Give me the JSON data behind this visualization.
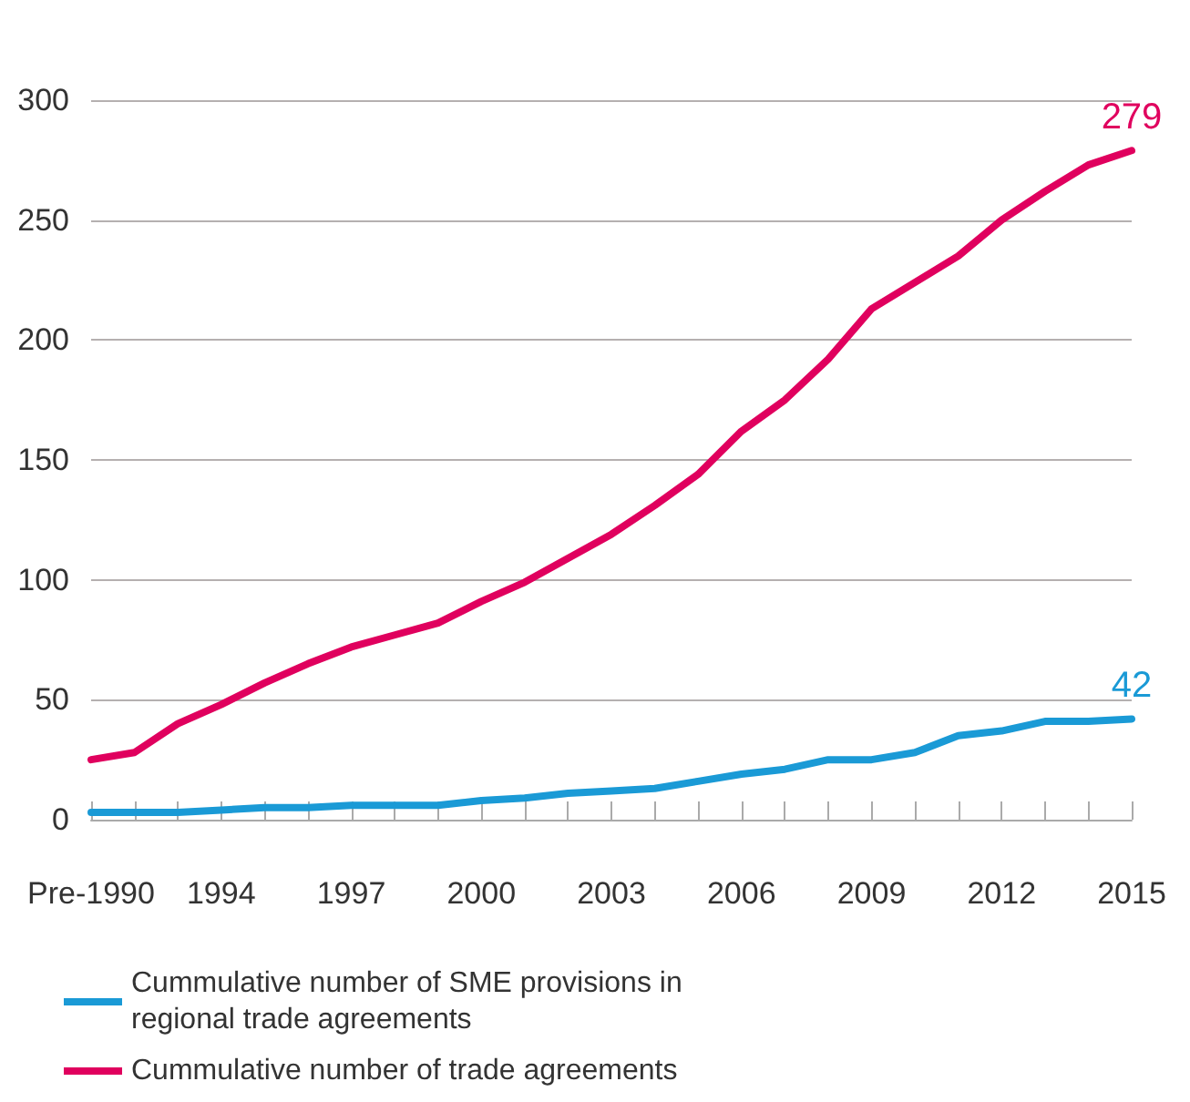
{
  "chart_data": {
    "type": "line",
    "categories": [
      "Pre-1990",
      null,
      null,
      "1994",
      null,
      null,
      "1997",
      null,
      null,
      "2000",
      null,
      null,
      "2003",
      null,
      null,
      "2006",
      null,
      null,
      "2009",
      null,
      null,
      "2012",
      null,
      null,
      "2015"
    ],
    "series": [
      {
        "name": "Cummulative number of SME provisions in regional trade agreements",
        "color": "#1a9ad6",
        "values": [
          3,
          3,
          3,
          4,
          5,
          5,
          6,
          6,
          6,
          8,
          9,
          11,
          12,
          13,
          16,
          19,
          21,
          25,
          25,
          28,
          35,
          37,
          41,
          41,
          42
        ],
        "value_labels": [
          null,
          null,
          null,
          null,
          null,
          null,
          null,
          null,
          null,
          null,
          null,
          null,
          null,
          null,
          null,
          null,
          null,
          null,
          null,
          null,
          null,
          null,
          null,
          null,
          "42"
        ]
      },
      {
        "name": "Cummulative number of trade agreements",
        "color": "#e0005e",
        "values": [
          25,
          28,
          40,
          48,
          57,
          65,
          72,
          77,
          82,
          91,
          99,
          109,
          119,
          131,
          144,
          162,
          175,
          192,
          213,
          224,
          235,
          250,
          262,
          273,
          279
        ],
        "value_labels": [
          null,
          null,
          null,
          null,
          null,
          null,
          null,
          null,
          null,
          null,
          null,
          null,
          null,
          null,
          null,
          null,
          null,
          null,
          null,
          null,
          null,
          null,
          null,
          null,
          "279"
        ]
      }
    ],
    "ylim": [
      0,
      300
    ],
    "yticks": [
      0,
      50,
      100,
      150,
      200,
      250,
      300
    ],
    "grid": "y",
    "legend": "bottom left",
    "marker": "none",
    "line_style": "solid"
  }
}
